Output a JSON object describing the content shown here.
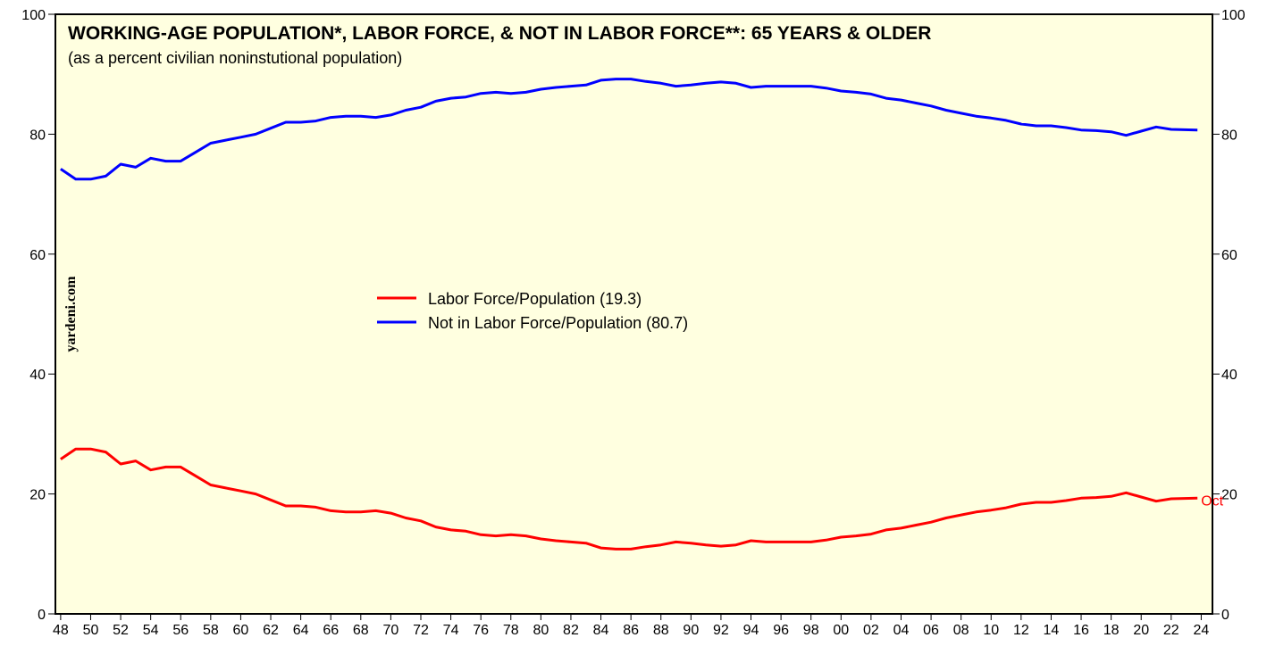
{
  "chart_data": {
    "type": "line",
    "title": "WORKING-AGE POPULATION*, LABOR FORCE, & NOT IN LABOR FORCE**: 65 YEARS & OLDER",
    "subtitle": "(as a percent civilian noninstutional population)",
    "annotations": [
      "yardeni.com",
      "Oct"
    ],
    "x": [
      1948,
      1949,
      1950,
      1951,
      1952,
      1953,
      1954,
      1955,
      1956,
      1957,
      1958,
      1959,
      1960,
      1961,
      1962,
      1963,
      1964,
      1965,
      1966,
      1967,
      1968,
      1969,
      1970,
      1971,
      1972,
      1973,
      1974,
      1975,
      1976,
      1977,
      1978,
      1979,
      1980,
      1981,
      1982,
      1983,
      1984,
      1985,
      1986,
      1987,
      1988,
      1989,
      1990,
      1991,
      1992,
      1993,
      1994,
      1995,
      1996,
      1997,
      1998,
      1999,
      2000,
      2001,
      2002,
      2003,
      2004,
      2005,
      2006,
      2007,
      2008,
      2009,
      2010,
      2011,
      2012,
      2013,
      2014,
      2015,
      2016,
      2017,
      2018,
      2019,
      2020,
      2021,
      2022,
      2023.75
    ],
    "series": [
      {
        "name": "Labor Force/Population (19.3)",
        "color": "#ff0000",
        "values": [
          25.8,
          27.5,
          27.5,
          27,
          25,
          25.5,
          24,
          24.5,
          24.5,
          23,
          21.5,
          21,
          20.5,
          20,
          19,
          18,
          18,
          17.8,
          17.2,
          17,
          17,
          17.2,
          16.8,
          16,
          15.5,
          14.5,
          14,
          13.8,
          13.2,
          13,
          13.2,
          13,
          12.5,
          12.2,
          12,
          11.8,
          11,
          10.8,
          10.8,
          11.2,
          11.5,
          12,
          11.8,
          11.5,
          11.3,
          11.5,
          12.2,
          12,
          12,
          12,
          12,
          12.3,
          12.8,
          13,
          13.3,
          14,
          14.3,
          14.8,
          15.3,
          16,
          16.5,
          17,
          17.3,
          17.7,
          18.3,
          18.6,
          18.6,
          18.9,
          19.3,
          19.4,
          19.6,
          20.2,
          19.5,
          18.8,
          19.2,
          19.3
        ]
      },
      {
        "name": "Not in Labor Force/Population (80.7)",
        "color": "#0000ff",
        "values": [
          74.2,
          72.5,
          72.5,
          73,
          75,
          74.5,
          76,
          75.5,
          75.5,
          77,
          78.5,
          79,
          79.5,
          80,
          81,
          82,
          82,
          82.2,
          82.8,
          83,
          83,
          82.8,
          83.2,
          84,
          84.5,
          85.5,
          86,
          86.2,
          86.8,
          87,
          86.8,
          87,
          87.5,
          87.8,
          88,
          88.2,
          89,
          89.2,
          89.2,
          88.8,
          88.5,
          88,
          88.2,
          88.5,
          88.7,
          88.5,
          87.8,
          88,
          88,
          88,
          88,
          87.7,
          87.2,
          87,
          86.7,
          86,
          85.7,
          85.2,
          84.7,
          84,
          83.5,
          83,
          82.7,
          82.3,
          81.7,
          81.4,
          81.4,
          81.1,
          80.7,
          80.6,
          80.4,
          79.8,
          80.5,
          81.2,
          80.8,
          80.7
        ]
      }
    ],
    "xlim": [
      1947.65,
      2024.75
    ],
    "xticks": [
      {
        "value": 1948,
        "label": "48"
      },
      {
        "value": 1950,
        "label": "50"
      },
      {
        "value": 1952,
        "label": "52"
      },
      {
        "value": 1954,
        "label": "54"
      },
      {
        "value": 1956,
        "label": "56"
      },
      {
        "value": 1958,
        "label": "58"
      },
      {
        "value": 1960,
        "label": "60"
      },
      {
        "value": 1962,
        "label": "62"
      },
      {
        "value": 1964,
        "label": "64"
      },
      {
        "value": 1966,
        "label": "66"
      },
      {
        "value": 1968,
        "label": "68"
      },
      {
        "value": 1970,
        "label": "70"
      },
      {
        "value": 1972,
        "label": "72"
      },
      {
        "value": 1974,
        "label": "74"
      },
      {
        "value": 1976,
        "label": "76"
      },
      {
        "value": 1978,
        "label": "78"
      },
      {
        "value": 1980,
        "label": "80"
      },
      {
        "value": 1982,
        "label": "82"
      },
      {
        "value": 1984,
        "label": "84"
      },
      {
        "value": 1986,
        "label": "86"
      },
      {
        "value": 1988,
        "label": "88"
      },
      {
        "value": 1990,
        "label": "90"
      },
      {
        "value": 1992,
        "label": "92"
      },
      {
        "value": 1994,
        "label": "94"
      },
      {
        "value": 1996,
        "label": "96"
      },
      {
        "value": 1998,
        "label": "98"
      },
      {
        "value": 2000,
        "label": "00"
      },
      {
        "value": 2002,
        "label": "02"
      },
      {
        "value": 2004,
        "label": "04"
      },
      {
        "value": 2006,
        "label": "06"
      },
      {
        "value": 2008,
        "label": "08"
      },
      {
        "value": 2010,
        "label": "10"
      },
      {
        "value": 2012,
        "label": "12"
      },
      {
        "value": 2014,
        "label": "14"
      },
      {
        "value": 2016,
        "label": "16"
      },
      {
        "value": 2018,
        "label": "18"
      },
      {
        "value": 2020,
        "label": "20"
      },
      {
        "value": 2022,
        "label": "22"
      },
      {
        "value": 2024,
        "label": "24"
      }
    ],
    "ylim": [
      0,
      100
    ],
    "yticks": [
      0,
      20,
      40,
      60,
      80,
      100
    ],
    "y2lim": [
      0,
      100
    ],
    "y2ticks": [
      0,
      20,
      40,
      60,
      80,
      100
    ],
    "grid": false
  }
}
